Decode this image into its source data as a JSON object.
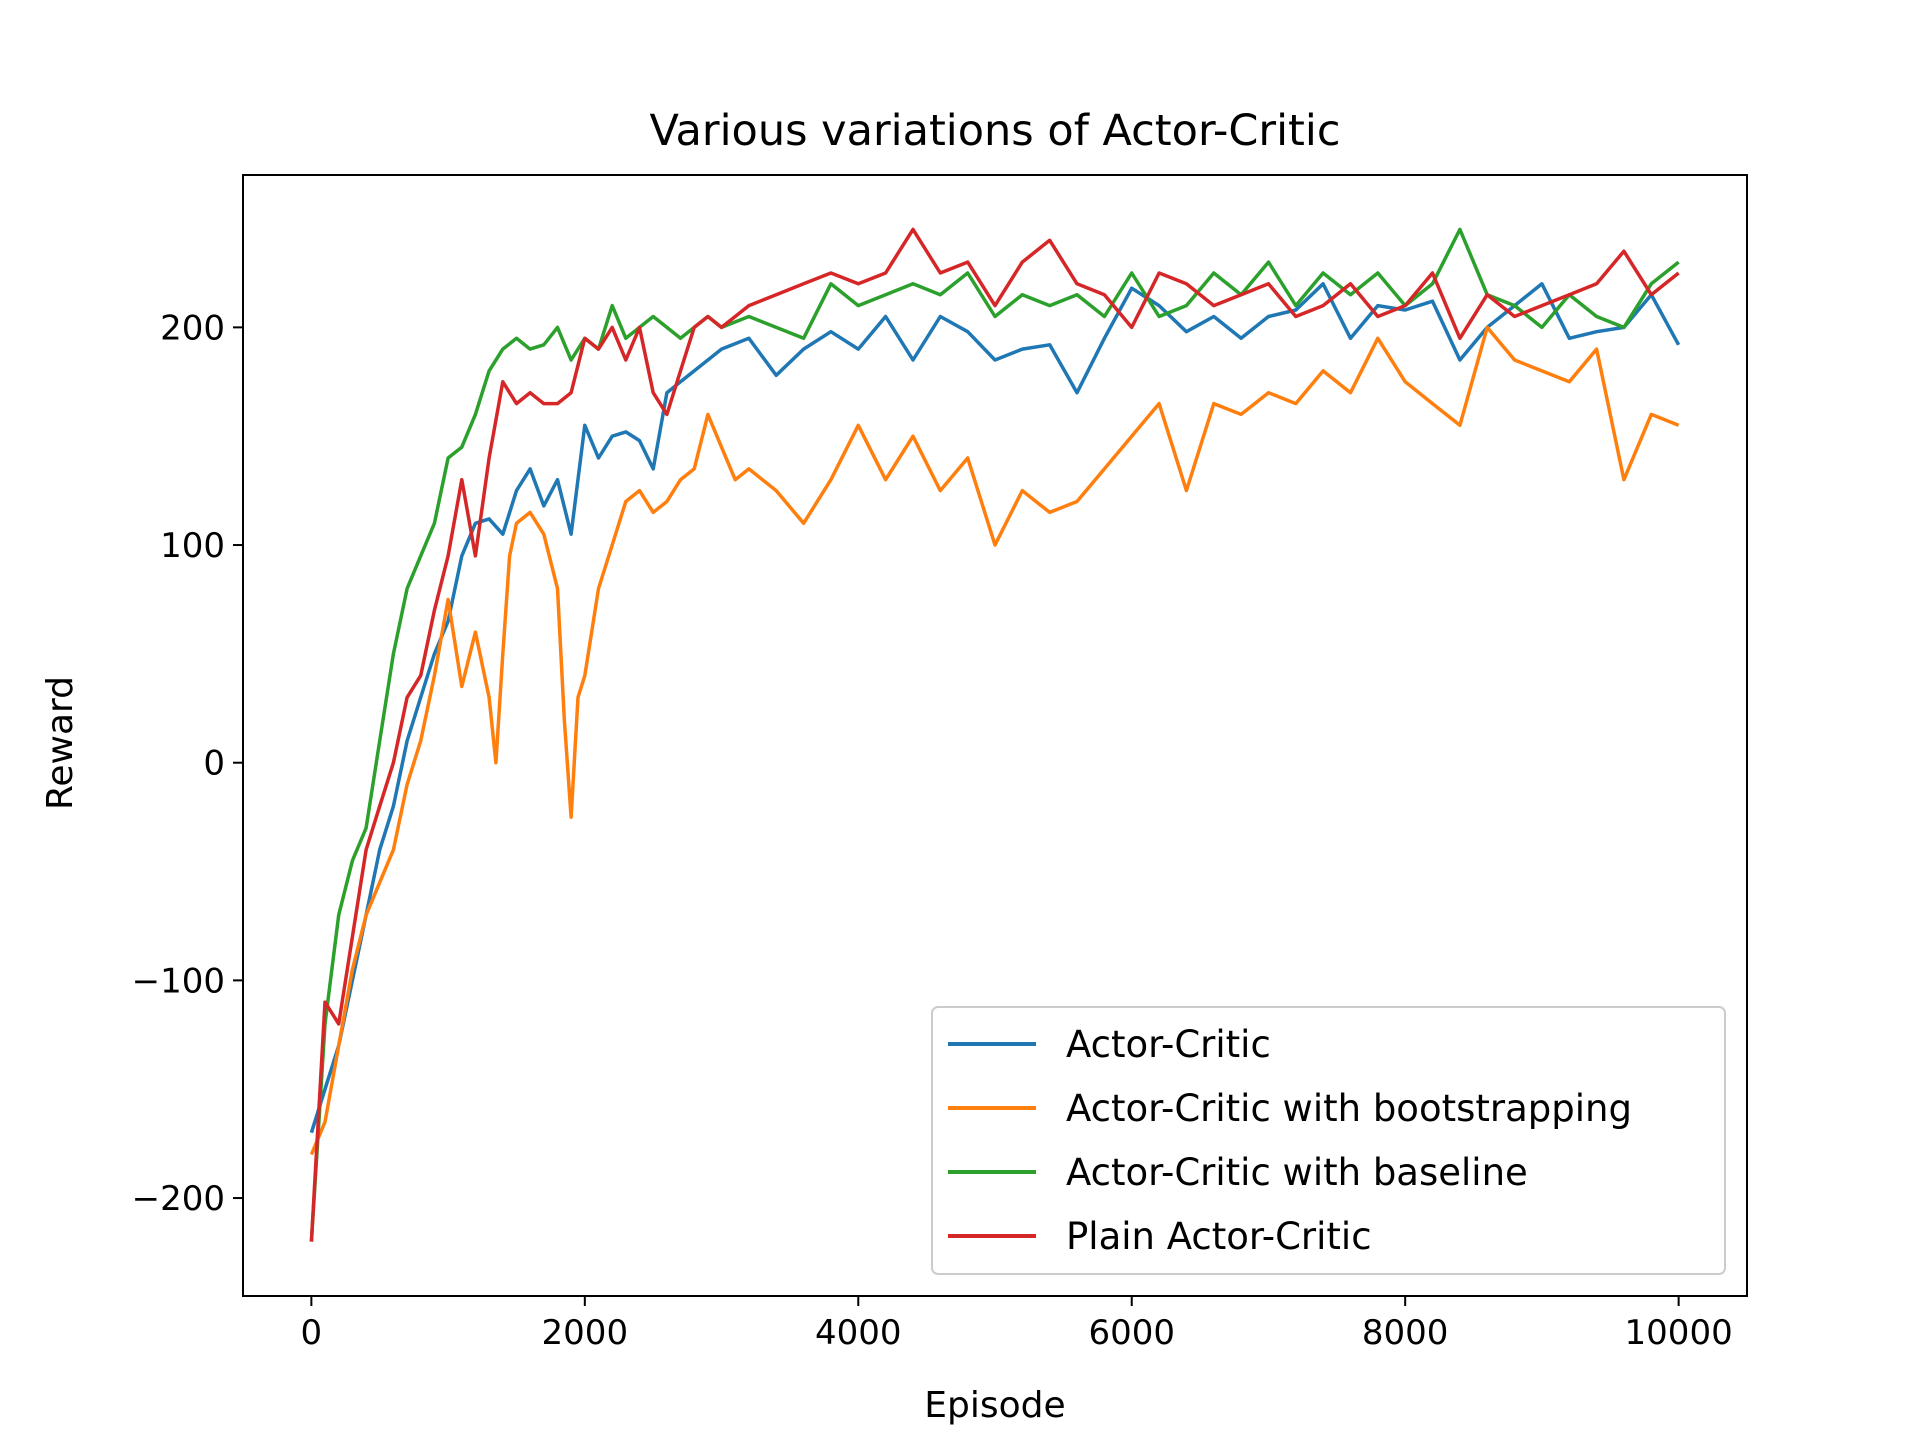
{
  "chart_data": {
    "type": "line",
    "title": "Various variations of Actor-Critic",
    "xlabel": "Episode",
    "ylabel": "Reward",
    "xlim": [
      -500,
      10500
    ],
    "ylim": [
      -245,
      270
    ],
    "xticks": [
      0,
      2000,
      4000,
      6000,
      8000,
      10000
    ],
    "xtick_labels": [
      "0",
      "2000",
      "4000",
      "6000",
      "8000",
      "10000"
    ],
    "yticks": [
      -200,
      -100,
      0,
      100,
      200
    ],
    "ytick_labels": [
      "−200",
      "−100",
      "0",
      "100",
      "200"
    ],
    "grid": false,
    "legend_position": "lower-right",
    "series": [
      {
        "name": "Actor-Critic",
        "color": "#1f77b4",
        "x": [
          0,
          100,
          200,
          300,
          400,
          500,
          600,
          700,
          800,
          900,
          1000,
          1100,
          1200,
          1300,
          1400,
          1500,
          1600,
          1700,
          1800,
          1900,
          2000,
          2100,
          2200,
          2300,
          2400,
          2500,
          2600,
          2700,
          2800,
          2900,
          3000,
          3200,
          3400,
          3600,
          3800,
          4000,
          4200,
          4400,
          4600,
          4800,
          5000,
          5200,
          5400,
          5600,
          5800,
          6000,
          6200,
          6400,
          6600,
          6800,
          7000,
          7200,
          7400,
          7600,
          7800,
          8000,
          8200,
          8400,
          8600,
          8800,
          9000,
          9200,
          9400,
          9600,
          9800,
          10000
        ],
        "values": [
          -170,
          -150,
          -130,
          -100,
          -70,
          -40,
          -20,
          10,
          30,
          50,
          65,
          95,
          110,
          112,
          105,
          125,
          135,
          118,
          130,
          105,
          155,
          140,
          150,
          152,
          148,
          135,
          170,
          175,
          180,
          185,
          190,
          195,
          178,
          190,
          198,
          190,
          205,
          185,
          205,
          198,
          185,
          190,
          192,
          170,
          195,
          218,
          210,
          198,
          205,
          195,
          205,
          208,
          220,
          195,
          210,
          208,
          212,
          185,
          200,
          210,
          220,
          195,
          198,
          200,
          215,
          192
        ]
      },
      {
        "name": "Actor-Critic with bootstrapping",
        "color": "#ff7f0e",
        "x": [
          0,
          100,
          200,
          300,
          400,
          500,
          600,
          700,
          800,
          900,
          1000,
          1100,
          1200,
          1300,
          1350,
          1400,
          1450,
          1500,
          1600,
          1700,
          1800,
          1850,
          1900,
          1950,
          2000,
          2100,
          2200,
          2300,
          2400,
          2500,
          2600,
          2700,
          2800,
          2900,
          3000,
          3100,
          3200,
          3400,
          3600,
          3800,
          4000,
          4200,
          4400,
          4600,
          4800,
          5000,
          5200,
          5400,
          5600,
          5800,
          6000,
          6200,
          6400,
          6600,
          6800,
          7000,
          7200,
          7400,
          7600,
          7800,
          8000,
          8200,
          8400,
          8600,
          8800,
          9000,
          9200,
          9400,
          9600,
          9800,
          10000
        ],
        "values": [
          -180,
          -165,
          -130,
          -95,
          -70,
          -55,
          -40,
          -10,
          10,
          40,
          75,
          35,
          60,
          30,
          0,
          50,
          95,
          110,
          115,
          105,
          80,
          20,
          -25,
          30,
          40,
          80,
          100,
          120,
          125,
          115,
          120,
          130,
          135,
          160,
          145,
          130,
          135,
          125,
          110,
          130,
          155,
          130,
          150,
          125,
          140,
          100,
          125,
          115,
          120,
          135,
          150,
          165,
          125,
          165,
          160,
          170,
          165,
          180,
          170,
          195,
          175,
          165,
          155,
          200,
          185,
          180,
          175,
          190,
          130,
          160,
          155
        ]
      },
      {
        "name": "Actor-Critic with baseline",
        "color": "#2ca02c",
        "x": [
          0,
          100,
          200,
          300,
          400,
          500,
          600,
          700,
          800,
          900,
          1000,
          1100,
          1200,
          1300,
          1400,
          1500,
          1600,
          1700,
          1800,
          1900,
          2000,
          2100,
          2200,
          2300,
          2400,
          2500,
          2600,
          2700,
          2800,
          2900,
          3000,
          3200,
          3400,
          3600,
          3800,
          4000,
          4200,
          4400,
          4600,
          4800,
          5000,
          5200,
          5400,
          5600,
          5800,
          6000,
          6200,
          6400,
          6600,
          6800,
          7000,
          7200,
          7400,
          7600,
          7800,
          8000,
          8200,
          8400,
          8600,
          8800,
          9000,
          9200,
          9400,
          9600,
          9800,
          10000
        ],
        "values": [
          -220,
          -120,
          -70,
          -45,
          -30,
          10,
          50,
          80,
          95,
          110,
          140,
          145,
          160,
          180,
          190,
          195,
          190,
          192,
          200,
          185,
          195,
          190,
          210,
          195,
          200,
          205,
          200,
          195,
          200,
          205,
          200,
          205,
          200,
          195,
          220,
          210,
          215,
          220,
          215,
          225,
          205,
          215,
          210,
          215,
          205,
          225,
          205,
          210,
          225,
          215,
          230,
          210,
          225,
          215,
          225,
          210,
          220,
          245,
          215,
          210,
          200,
          215,
          205,
          200,
          220,
          230
        ]
      },
      {
        "name": "Plain Actor-Critic",
        "color": "#d62728",
        "x": [
          0,
          100,
          200,
          300,
          400,
          500,
          600,
          700,
          800,
          900,
          1000,
          1100,
          1200,
          1300,
          1400,
          1500,
          1600,
          1700,
          1800,
          1900,
          2000,
          2100,
          2200,
          2300,
          2400,
          2500,
          2600,
          2700,
          2800,
          2900,
          3000,
          3200,
          3400,
          3600,
          3800,
          4000,
          4200,
          4400,
          4600,
          4800,
          5000,
          5200,
          5400,
          5600,
          5800,
          6000,
          6200,
          6400,
          6600,
          6800,
          7000,
          7200,
          7400,
          7600,
          7800,
          8000,
          8200,
          8400,
          8600,
          8800,
          9000,
          9200,
          9400,
          9600,
          9800,
          10000
        ],
        "values": [
          -220,
          -110,
          -120,
          -80,
          -40,
          -20,
          0,
          30,
          40,
          70,
          95,
          130,
          95,
          140,
          175,
          165,
          170,
          165,
          165,
          170,
          195,
          190,
          200,
          185,
          200,
          170,
          160,
          180,
          200,
          205,
          200,
          210,
          215,
          220,
          225,
          220,
          225,
          245,
          225,
          230,
          210,
          230,
          240,
          220,
          215,
          200,
          225,
          220,
          210,
          215,
          220,
          205,
          210,
          220,
          205,
          210,
          225,
          195,
          215,
          205,
          210,
          215,
          220,
          235,
          215,
          225
        ]
      }
    ]
  }
}
